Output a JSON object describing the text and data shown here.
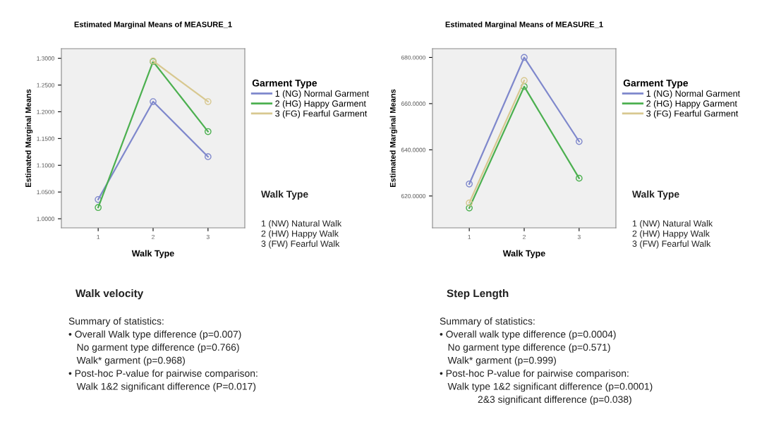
{
  "chart_data": [
    {
      "type": "line",
      "title": "Estimated Marginal Means of MEASURE_1",
      "xlabel": "Walk Type",
      "ylabel": "Estimated Marginal Means",
      "legend_title": "Garment Type",
      "categories": [
        "1",
        "2",
        "3"
      ],
      "series": [
        {
          "name": "1 (NG) Normal Garment",
          "color": "#7f88cc",
          "values": [
            1.036,
            1.219,
            1.116
          ]
        },
        {
          "name": "2 (HG) Happy Garment",
          "color": "#4cb050",
          "values": [
            1.021,
            1.294,
            1.163
          ]
        },
        {
          "name": "3 (FG) Fearful Garment",
          "color": "#d8c890",
          "values": [
            null,
            1.295,
            1.219
          ]
        }
      ],
      "ylim": [
        0.983,
        1.318
      ],
      "yticks": [
        {
          "value": 1.0,
          "label": "1.0000"
        },
        {
          "value": 1.05,
          "label": "1.0500"
        },
        {
          "value": 1.1,
          "label": "1.1000"
        },
        {
          "value": 1.15,
          "label": "1.1500"
        },
        {
          "value": 1.2,
          "label": "1.2000"
        },
        {
          "value": 1.25,
          "label": "1.2500"
        },
        {
          "value": 1.3,
          "label": "1.3000"
        }
      ],
      "marker": "circle",
      "line_style": "solid",
      "grid": false,
      "legend": "right",
      "annotations": [
        "Walk Type",
        "1 (NW) Natural Walk\n2 (HW) Happy Walk\n3 (FW) Fearful Walk",
        "Walk velocity",
        "Summary of statistics:\n• Overall Walk type difference (p=0.007)\n   No garment type difference (p=0.766)\n   Walk* garment (p=0.968)\n• Post-hoc P-value for pairwise comparison:\n   Walk 1&2 significant difference (P=0.017)"
      ]
    },
    {
      "type": "line",
      "title": "Estimated Marginal Means of MEASURE_1",
      "xlabel": "Walk Type",
      "ylabel": "Estimated Marginal Means",
      "legend_title": "Garment Type",
      "categories": [
        "1",
        "2",
        "3"
      ],
      "series": [
        {
          "name": "1 (NG) Normal Garment",
          "color": "#7f88cc",
          "values": [
            625.2,
            680.0,
            643.6
          ]
        },
        {
          "name": "2 (HG) Happy Garment",
          "color": "#4cb050",
          "values": [
            614.8,
            667.4,
            627.7
          ]
        },
        {
          "name": "3 (FG) Fearful Garment",
          "color": "#d8c890",
          "values": [
            617.0,
            670.0,
            null
          ]
        }
      ],
      "ylim": [
        606.2,
        683.8
      ],
      "yticks": [
        {
          "value": 620,
          "label": "620.0000"
        },
        {
          "value": 640,
          "label": "640.0000"
        },
        {
          "value": 660,
          "label": "660.0000"
        },
        {
          "value": 680,
          "label": "680.0000"
        }
      ],
      "marker": "circle",
      "line_style": "solid",
      "grid": false,
      "legend": "right",
      "annotations": [
        "Walk Type",
        "1 (NW) Natural Walk\n2 (HW) Happy Walk\n3 (FW) Fearful Walk",
        "Step Length",
        "Summary of statistics:\n• Overall walk type difference (p=0.0004)\n   No garment type difference (p=0.571)\n   Walk* garment (p=0.999)\n• Post-hoc P-value for pairwise comparison:\n   Walk type 1&2 significant difference (p=0.0001)\n              2&3 significant difference (p=0.038)"
      ]
    }
  ]
}
